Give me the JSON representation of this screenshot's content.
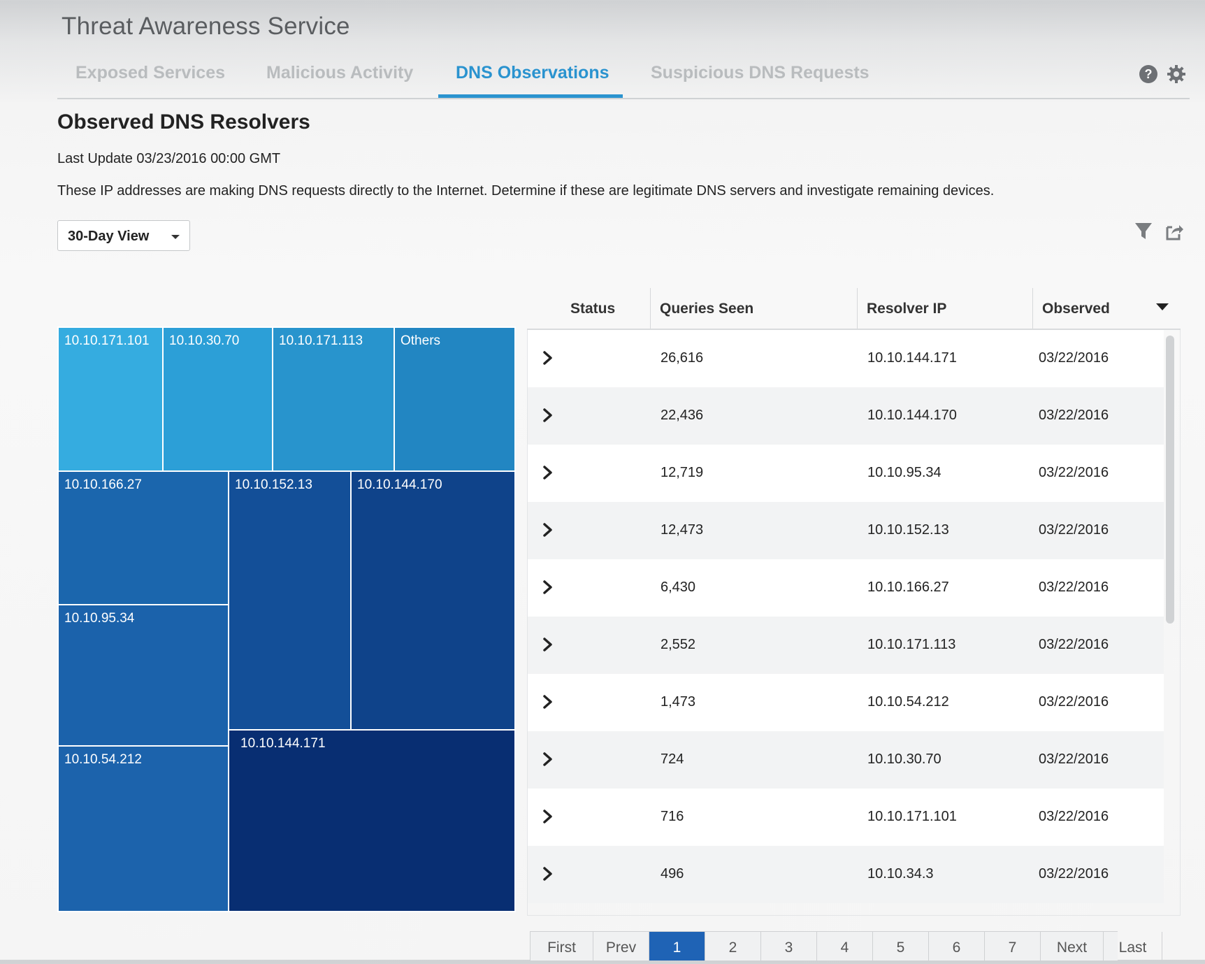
{
  "app": {
    "title": "Threat Awareness Service"
  },
  "tabs": [
    {
      "label": "Exposed Services"
    },
    {
      "label": "Malicious Activity"
    },
    {
      "label": "DNS Observations"
    },
    {
      "label": "Suspicious DNS Requests"
    }
  ],
  "active_tab": "DNS Observations",
  "header_icons": [
    "help-icon",
    "gear-icon"
  ],
  "page": {
    "heading": "Observed DNS Resolvers",
    "last_update": "Last Update 03/23/2016 00:00 GMT",
    "description": "These IP addresses are making DNS requests directly to the Internet. Determine if these are legitimate DNS servers and investigate remaining devices."
  },
  "view_select": {
    "value": "30-Day View"
  },
  "toolbar_icons": [
    "filter-icon",
    "export-icon"
  ],
  "treemap": {
    "cells": [
      {
        "label": "10.10.171.101",
        "color": "#35ace0"
      },
      {
        "label": "10.10.30.70",
        "color": "#2c9fd7"
      },
      {
        "label": "10.10.171.113",
        "color": "#2894cd"
      },
      {
        "label": "Others",
        "color": "#2286c2"
      },
      {
        "label": "10.10.166.27",
        "color": "#1b66ad"
      },
      {
        "label": "10.10.152.13",
        "color": "#134f98"
      },
      {
        "label": "10.10.144.170",
        "color": "#0f438a"
      },
      {
        "label": "10.10.95.34",
        "color": "#1b62ab"
      },
      {
        "label": "10.10.54.212",
        "color": "#1c63ac"
      },
      {
        "label": "10.10.144.171",
        "color": "#082e72"
      }
    ]
  },
  "table": {
    "columns": [
      "Status",
      "Queries Seen",
      "Resolver IP",
      "Observed"
    ],
    "rows": [
      {
        "queries": "26,616",
        "ip": "10.10.144.171",
        "observed": "03/22/2016"
      },
      {
        "queries": "22,436",
        "ip": "10.10.144.170",
        "observed": "03/22/2016"
      },
      {
        "queries": "12,719",
        "ip": "10.10.95.34",
        "observed": "03/22/2016"
      },
      {
        "queries": "12,473",
        "ip": "10.10.152.13",
        "observed": "03/22/2016"
      },
      {
        "queries": "6,430",
        "ip": "10.10.166.27",
        "observed": "03/22/2016"
      },
      {
        "queries": "2,552",
        "ip": "10.10.171.113",
        "observed": "03/22/2016"
      },
      {
        "queries": "1,473",
        "ip": "10.10.54.212",
        "observed": "03/22/2016"
      },
      {
        "queries": "724",
        "ip": "10.10.30.70",
        "observed": "03/22/2016"
      },
      {
        "queries": "716",
        "ip": "10.10.171.101",
        "observed": "03/22/2016"
      },
      {
        "queries": "496",
        "ip": "10.10.34.3",
        "observed": "03/22/2016"
      }
    ]
  },
  "pagination": {
    "items": [
      "First",
      "Prev",
      "1",
      "2",
      "3",
      "4",
      "5",
      "6",
      "7",
      "Next",
      "Last"
    ],
    "current": "1"
  },
  "colors": {
    "accent": "#2a93cf",
    "pager_active": "#1f63b5"
  }
}
